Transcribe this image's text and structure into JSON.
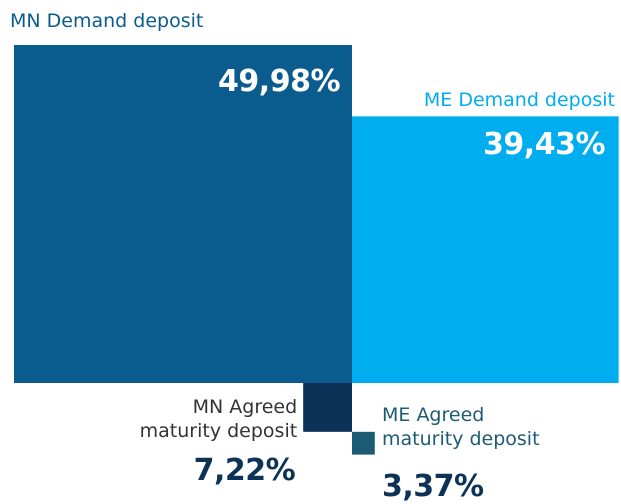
{
  "chart_data": {
    "type": "square",
    "categories": [
      "MN Demand deposit",
      "ME Demand deposit",
      "MN Agreed maturity deposit",
      "ME Agreed maturity deposit"
    ],
    "values": [
      49.98,
      39.43,
      7.22,
      3.37
    ],
    "value_labels": [
      "49,98%",
      "39,43%",
      "7,22%",
      "3,37%"
    ],
    "colors": [
      "#0b5c8e",
      "#00adef",
      "#0d3258",
      "#1c5b74"
    ]
  }
}
